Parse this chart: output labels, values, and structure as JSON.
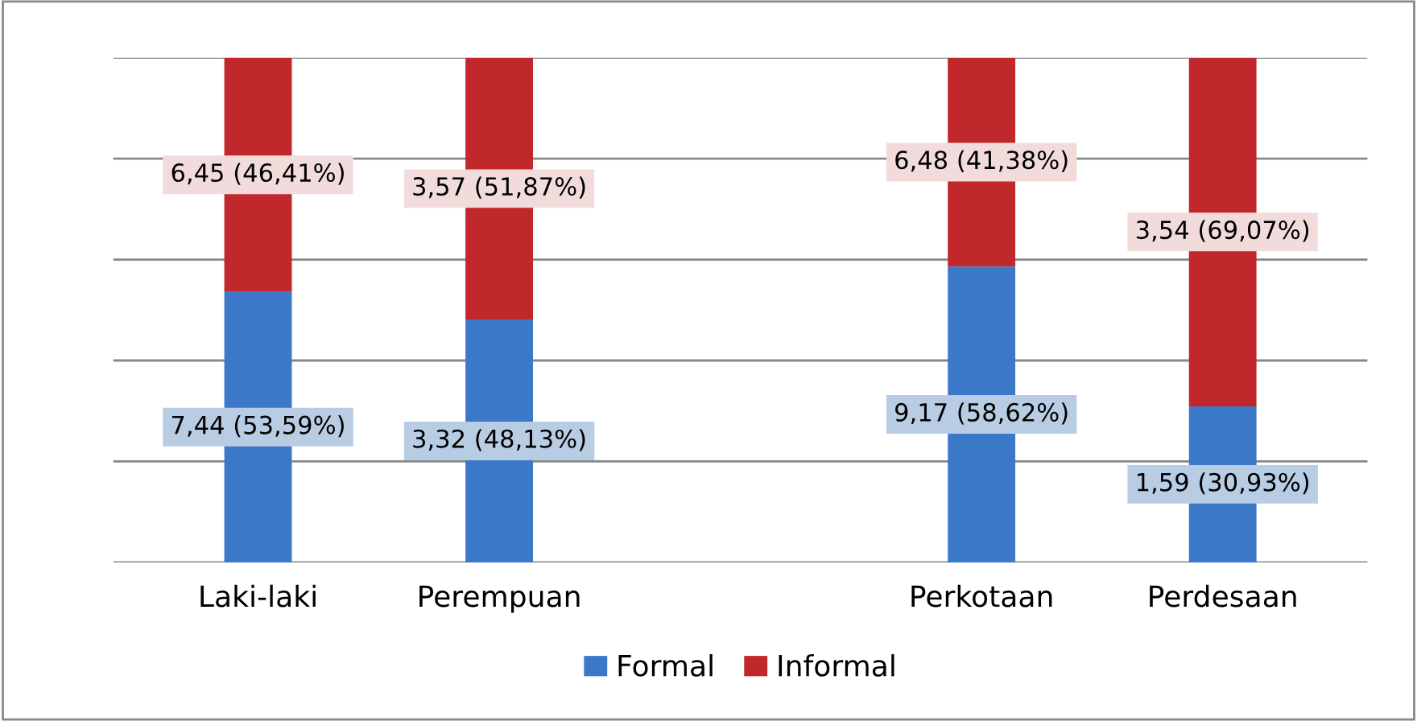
{
  "chart_data": {
    "type": "bar",
    "stacked": true,
    "categories": [
      "Laki-laki",
      "Perempuan",
      null,
      "Perkotaan",
      "Perdesaan"
    ],
    "series": [
      {
        "name": "Formal",
        "color": "#3c78c8",
        "values": [
          53.59,
          48.13,
          null,
          58.62,
          30.93
        ],
        "value_labels": [
          "7,44 (53,59%)",
          "3,32 (48,13%)",
          null,
          "9,17 (58,62%)",
          "1,59 (30,93%)"
        ]
      },
      {
        "name": "Informal",
        "color": "#c0282c",
        "values": [
          46.41,
          51.87,
          null,
          41.38,
          69.07
        ],
        "value_labels": [
          "6,45 (46,41%)",
          "3,57 (51,87%)",
          null,
          "6,48 (41,38%)",
          "3,54 (69,07%)"
        ]
      }
    ],
    "ylim": [
      0,
      100
    ],
    "yticks": [
      {
        "value": 0,
        "label": null
      },
      {
        "value": 20,
        "label": null
      },
      {
        "value": 40,
        "label": null
      },
      {
        "value": 60,
        "label": null
      },
      {
        "value": 80,
        "label": null
      },
      {
        "value": 100,
        "label": null
      }
    ],
    "tick_labels": "x",
    "grid": "y",
    "legend": "bottom"
  }
}
